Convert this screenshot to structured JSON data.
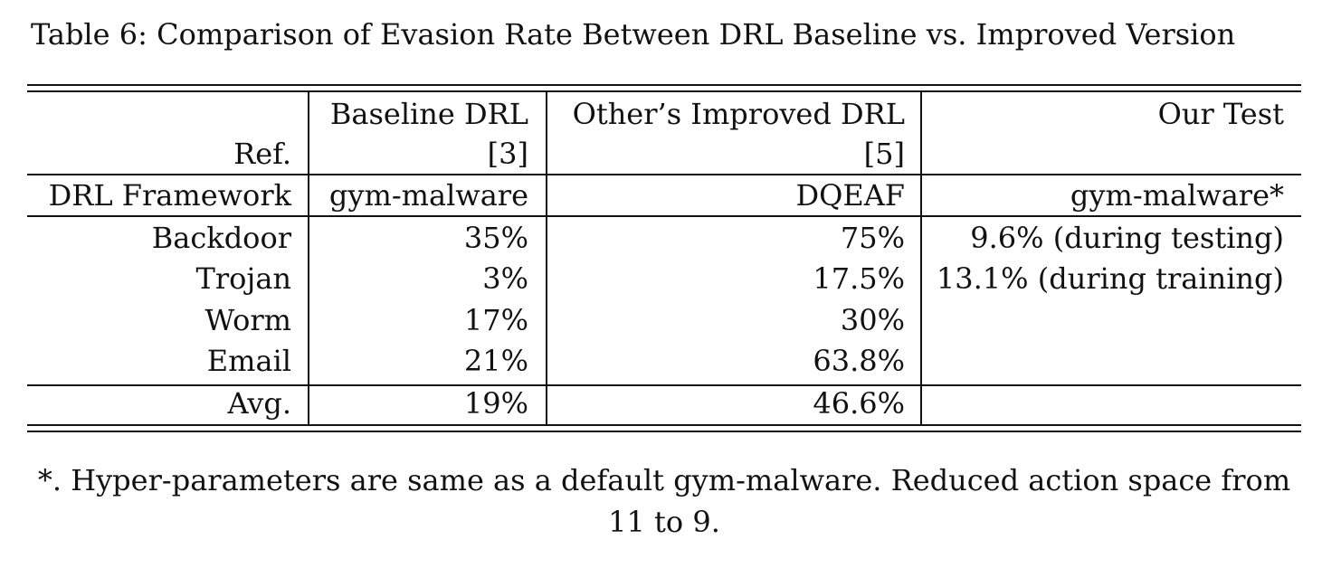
{
  "caption": "Table 6: Comparison of Evasion Rate Between DRL Baseline vs. Improved Version",
  "table": {
    "header": {
      "ref_label": "Ref.",
      "baseline_title": "Baseline DRL",
      "baseline_ref": "[3]",
      "improved_title": "Other’s Improved DRL",
      "improved_ref": "[5]",
      "ours_title": "Our Test"
    },
    "framework_row": {
      "label": "DRL Framework",
      "baseline": "gym-malware",
      "improved": "DQEAF",
      "ours": "gym-malware*"
    },
    "rows": [
      {
        "label": "Backdoor",
        "baseline": "35%",
        "improved": "75%",
        "ours": "9.6% (during testing)"
      },
      {
        "label": "Trojan",
        "baseline": "3%",
        "improved": "17.5%",
        "ours": "13.1% (during training)"
      },
      {
        "label": "Worm",
        "baseline": "17%",
        "improved": "30%",
        "ours": ""
      },
      {
        "label": "Email",
        "baseline": "21%",
        "improved": "63.8%",
        "ours": ""
      }
    ],
    "avg_row": {
      "label": "Avg.",
      "baseline": "19%",
      "improved": "46.6%",
      "ours": ""
    }
  },
  "footnote": {
    "line1": "*. Hyper-parameters are same as a default gym-malware. Reduced action space from",
    "line2": "11 to 9."
  }
}
